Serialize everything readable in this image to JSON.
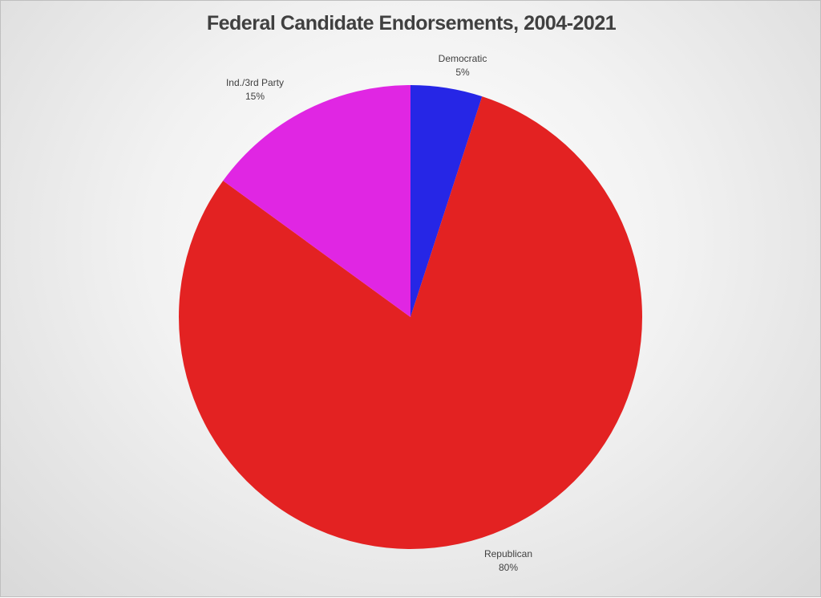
{
  "chart_data": {
    "type": "pie",
    "title": "Federal Candidate Endorsements, 2004-2021",
    "slices": [
      {
        "label": "Democratic",
        "value": 5,
        "display": "5%",
        "color": "#2626e6"
      },
      {
        "label": "Republican",
        "value": 80,
        "display": "80%",
        "color": "#e32222"
      },
      {
        "label": "Ind./3rd Party",
        "value": 15,
        "display": "15%",
        "color": "#e026e3"
      }
    ],
    "start_angle": "12 o'clock",
    "direction": "clockwise",
    "legend": "none",
    "data_labels": "outside-end"
  }
}
